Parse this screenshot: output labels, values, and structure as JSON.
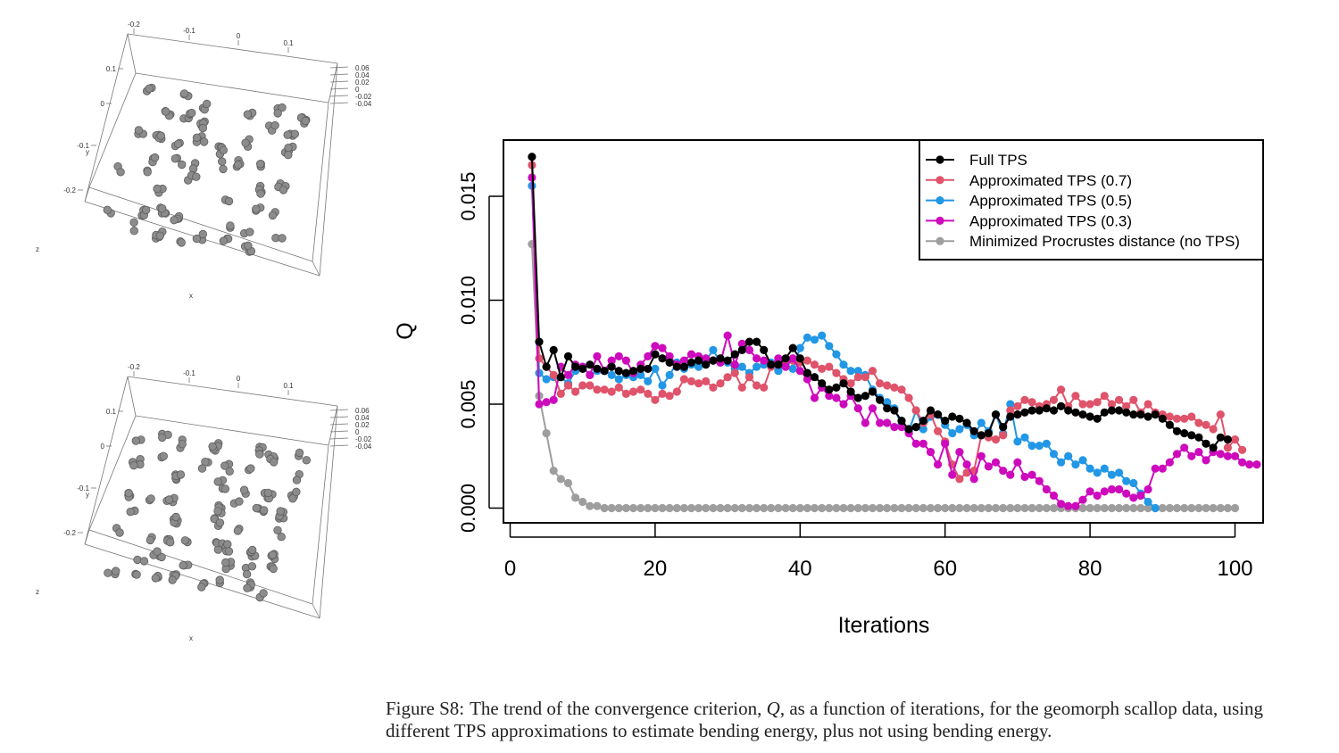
{
  "colors": {
    "full": "#000000",
    "tps07": "#df536b",
    "tps05": "#2297e6",
    "tps03": "#cd0bbc",
    "noTps": "#9e9e9e"
  },
  "panels": [
    {
      "x_ticks": [
        "-0.2",
        "-0.1",
        "0",
        "0.1"
      ],
      "y_ticks": [
        "0.1",
        "0",
        "-0.1",
        "-0.2"
      ],
      "z_ticks": [
        "0.06",
        "0.04",
        "0.02",
        "0",
        "-0.02",
        "-0.04"
      ],
      "axis_x": "x",
      "axis_y": "y",
      "axis_z": "z"
    },
    {
      "x_ticks": [
        "-0.2",
        "-0.1",
        "0",
        "0.1"
      ],
      "y_ticks": [
        "0.1",
        "0",
        "-0.1",
        "-0.2"
      ],
      "z_ticks": [
        "0.06",
        "0.04",
        "0.02",
        "0",
        "-0.02",
        "-0.04"
      ],
      "axis_x": "x",
      "axis_y": "y",
      "axis_z": "z"
    }
  ],
  "chart_data": {
    "type": "line",
    "xlabel": "Iterations",
    "ylabel": "Q",
    "xlim": [
      0,
      104
    ],
    "ylim": [
      -0.0013,
      0.0177
    ],
    "x_ticks": [
      0,
      20,
      40,
      60,
      80,
      100
    ],
    "y_ticks": [
      0.0,
      0.005,
      0.01,
      0.015
    ],
    "y_tick_labels": [
      "0.000",
      "0.005",
      "0.010",
      "0.015"
    ],
    "legend_position": "top-right",
    "series": [
      {
        "name": "Full TPS",
        "color_key": "full",
        "x_start": 3,
        "values": [
          0.0169,
          0.008,
          0.0068,
          0.0076,
          0.0063,
          0.0073,
          0.0068,
          0.0067,
          0.0069,
          0.0067,
          0.0066,
          0.0068,
          0.0066,
          0.0065,
          0.0066,
          0.0067,
          0.0067,
          0.0074,
          0.0072,
          0.007,
          0.0068,
          0.0068,
          0.007,
          0.0071,
          0.0069,
          0.0071,
          0.0072,
          0.0071,
          0.0074,
          0.0076,
          0.008,
          0.008,
          0.0076,
          0.0069,
          0.0069,
          0.0072,
          0.0077,
          0.0072,
          0.0065,
          0.0063,
          0.006,
          0.0057,
          0.0058,
          0.006,
          0.0056,
          0.0053,
          0.0054,
          0.0056,
          0.0052,
          0.0048,
          0.0047,
          0.0042,
          0.0038,
          0.0039,
          0.0042,
          0.0047,
          0.0045,
          0.0042,
          0.0044,
          0.0043,
          0.0041,
          0.0037,
          0.0035,
          0.0036,
          0.0045,
          0.0039,
          0.0044,
          0.0045,
          0.0046,
          0.0047,
          0.0047,
          0.0048,
          0.0047,
          0.0049,
          0.0047,
          0.0046,
          0.0045,
          0.0044,
          0.0043,
          0.0046,
          0.0047,
          0.0047,
          0.0046,
          0.0045,
          0.0045,
          0.0044,
          0.0045,
          0.0043,
          0.004,
          0.0037,
          0.0036,
          0.0035,
          0.0034,
          0.0031,
          0.0029,
          0.0034,
          0.0033
        ]
      },
      {
        "name": "Approximated TPS (0.7)",
        "color_key": "tps07",
        "x_start": 3,
        "values": [
          0.0165,
          0.0072,
          0.0068,
          0.0064,
          0.0055,
          0.0059,
          0.0056,
          0.0059,
          0.0059,
          0.0057,
          0.0057,
          0.0056,
          0.0058,
          0.0055,
          0.0056,
          0.0057,
          0.0055,
          0.0052,
          0.0055,
          0.0054,
          0.0056,
          0.0062,
          0.0061,
          0.006,
          0.0061,
          0.0058,
          0.006,
          0.0063,
          0.0065,
          0.0058,
          0.0063,
          0.0059,
          0.0058,
          0.0068,
          0.0069,
          0.0071,
          0.0071,
          0.007,
          0.0071,
          0.0069,
          0.0067,
          0.0068,
          0.0065,
          0.0062,
          0.006,
          0.0063,
          0.0063,
          0.0066,
          0.006,
          0.0059,
          0.0058,
          0.0057,
          0.0053,
          0.0047,
          0.0041,
          0.0045,
          0.0037,
          0.0032,
          0.0021,
          0.0014,
          0.0017,
          0.0018,
          0.0035,
          0.0034,
          0.0033,
          0.0035,
          0.0047,
          0.0049,
          0.0052,
          0.0051,
          0.0049,
          0.005,
          0.0052,
          0.0057,
          0.0049,
          0.0054,
          0.005,
          0.005,
          0.0051,
          0.0054,
          0.005,
          0.0052,
          0.0049,
          0.0052,
          0.0046,
          0.005,
          0.0046,
          0.0045,
          0.0044,
          0.0043,
          0.0043,
          0.0044,
          0.0041,
          0.004,
          0.0038,
          0.0045,
          0.0029,
          0.0033,
          0.0028
        ]
      },
      {
        "name": "Approximated TPS (0.5)",
        "color_key": "tps05",
        "x_start": 3,
        "values": [
          0.0155,
          0.0065,
          0.0062,
          0.0063,
          0.0063,
          0.006,
          0.0066,
          0.0068,
          0.0064,
          0.0066,
          0.0066,
          0.0064,
          0.0062,
          0.0064,
          0.0063,
          0.0064,
          0.0061,
          0.0067,
          0.0059,
          0.0064,
          0.007,
          0.0067,
          0.0069,
          0.0068,
          0.0071,
          0.0076,
          0.007,
          0.007,
          0.0067,
          0.0068,
          0.0065,
          0.0068,
          0.0069,
          0.007,
          0.0066,
          0.0069,
          0.0067,
          0.0077,
          0.0082,
          0.0081,
          0.0083,
          0.0078,
          0.0074,
          0.0069,
          0.0066,
          0.0066,
          0.0064,
          0.0057,
          0.0053,
          0.0051,
          0.0048,
          0.004,
          0.0037,
          0.0047,
          0.0038,
          0.0044,
          0.0045,
          0.004,
          0.0036,
          0.0038,
          0.004,
          0.0035,
          0.0041,
          0.0037,
          0.0045,
          0.0036,
          0.005,
          0.0032,
          0.0034,
          0.003,
          0.003,
          0.0031,
          0.0026,
          0.0022,
          0.0025,
          0.0021,
          0.0023,
          0.0019,
          0.0017,
          0.0019,
          0.0016,
          0.0017,
          0.0013,
          0.0012,
          0.0007,
          0.0003,
          0.0
        ]
      },
      {
        "name": "Approximated TPS (0.3)",
        "color_key": "tps03",
        "x_start": 3,
        "values": [
          0.0159,
          0.005,
          0.0051,
          0.0052,
          0.0068,
          0.0064,
          0.0069,
          0.0068,
          0.0064,
          0.0073,
          0.0066,
          0.0071,
          0.0073,
          0.0071,
          0.0065,
          0.0069,
          0.0073,
          0.0078,
          0.0077,
          0.0073,
          0.0069,
          0.0071,
          0.0074,
          0.0073,
          0.0072,
          0.0071,
          0.007,
          0.0083,
          0.0069,
          0.0079,
          0.0076,
          0.0072,
          0.0071,
          0.0069,
          0.0072,
          0.0068,
          0.0072,
          0.0066,
          0.0062,
          0.0053,
          0.0058,
          0.0054,
          0.0053,
          0.005,
          0.0054,
          0.0048,
          0.0041,
          0.0048,
          0.0041,
          0.0041,
          0.0039,
          0.0039,
          0.0036,
          0.0031,
          0.0031,
          0.0027,
          0.0021,
          0.0031,
          0.0016,
          0.0027,
          0.0021,
          0.0014,
          0.0025,
          0.002,
          0.0022,
          0.0018,
          0.0016,
          0.0022,
          0.0015,
          0.0016,
          0.0013,
          0.0009,
          0.0006,
          0.0002,
          0.0001,
          0.0001,
          0.0004,
          0.0008,
          0.0006,
          0.0008,
          0.0009,
          0.0009,
          0.0007,
          0.0005,
          0.0006,
          0.0009,
          0.0019,
          0.0019,
          0.0022,
          0.0026,
          0.0029,
          0.0025,
          0.0027,
          0.0023,
          0.0027,
          0.0026,
          0.0025,
          0.0025,
          0.0022,
          0.0021,
          0.0021
        ]
      },
      {
        "name": "Minimized Procrustes distance (no TPS)",
        "color_key": "noTps",
        "x_start": 3,
        "values": [
          0.0127,
          0.0054,
          0.0036,
          0.0018,
          0.0014,
          0.0012,
          0.0005,
          0.0003,
          0.0001,
          0.0001,
          0.0,
          0.0,
          0.0,
          0.0,
          0.0,
          0.0,
          0.0,
          0.0,
          0.0,
          0.0,
          0.0,
          0.0,
          0.0,
          0.0,
          0.0,
          0.0,
          0.0,
          0.0,
          0.0,
          0.0,
          0.0,
          0.0,
          0.0,
          0.0,
          0.0,
          0.0,
          0.0,
          0.0,
          0.0,
          0.0,
          0.0,
          0.0,
          0.0,
          0.0,
          0.0,
          0.0,
          0.0,
          0.0,
          0.0,
          0.0,
          0.0,
          0.0,
          0.0,
          0.0,
          0.0,
          0.0,
          0.0,
          0.0,
          0.0,
          0.0,
          0.0,
          0.0,
          0.0,
          0.0,
          0.0,
          0.0,
          0.0,
          0.0,
          0.0,
          0.0,
          0.0,
          0.0,
          0.0,
          0.0,
          0.0,
          0.0,
          0.0,
          0.0,
          0.0,
          0.0,
          0.0,
          0.0,
          0.0,
          0.0,
          0.0,
          0.0,
          0.0,
          0.0,
          0.0,
          0.0,
          0.0,
          0.0,
          0.0,
          0.0,
          0.0,
          0.0,
          0.0,
          0.0
        ]
      }
    ]
  },
  "caption": {
    "label": "Figure S8:",
    "pre": "The trend of the convergence criterion,",
    "symbol": "Q",
    "post": ", as a function of iterations, for the geomorph scallop data, using different TPS approximations to estimate bending energy, plus not using bending energy."
  }
}
